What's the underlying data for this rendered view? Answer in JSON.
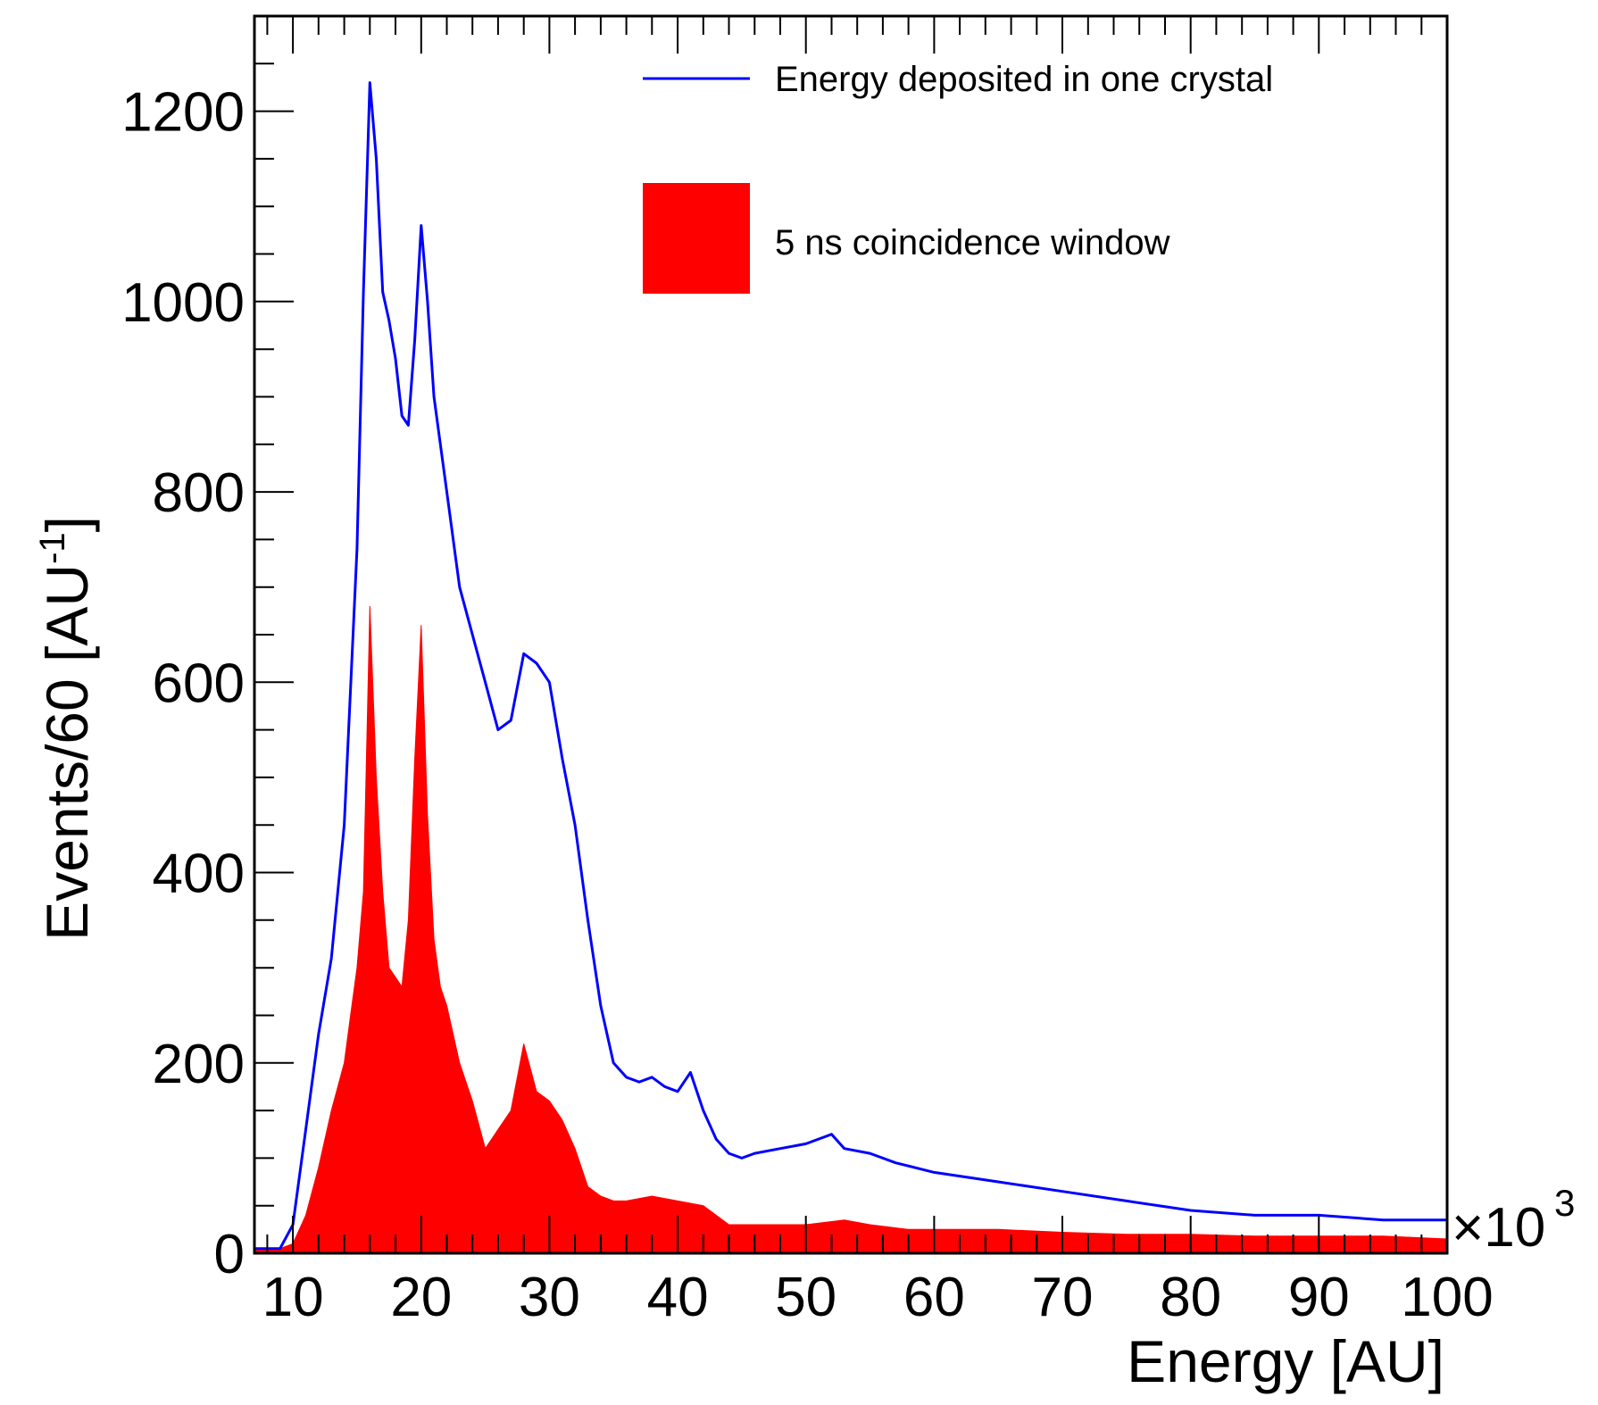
{
  "chart_data": {
    "type": "histogram",
    "xlabel": "Energy [AU]",
    "ylabel": "Events/60 [AU",
    "ylabel_superscript": "-1",
    "ylabel_suffix": "]",
    "xlim": [
      7000,
      100000
    ],
    "ylim": [
      0,
      1300
    ],
    "x_multiplier_base": "×10",
    "x_multiplier_exp": "3",
    "x_ticks": [
      10000,
      20000,
      30000,
      40000,
      50000,
      60000,
      70000,
      80000,
      90000,
      100000
    ],
    "x_tick_labels": [
      "10",
      "20",
      "30",
      "40",
      "50",
      "60",
      "70",
      "80",
      "90",
      "100"
    ],
    "y_ticks": [
      0,
      200,
      400,
      600,
      800,
      1000,
      1200
    ],
    "y_tick_labels": [
      "0",
      "200",
      "400",
      "600",
      "800",
      "1000",
      "1200"
    ],
    "grid": false,
    "legend_position": "top-right",
    "series": [
      {
        "name": "Energy deposited in one crystal",
        "style": "step-line",
        "color": "#0000ff",
        "x": [
          7000,
          9000,
          10000,
          11000,
          12000,
          13000,
          14000,
          15000,
          15500,
          16000,
          16500,
          17000,
          17500,
          18000,
          18500,
          19000,
          19500,
          20000,
          20500,
          21000,
          22000,
          23000,
          24000,
          25000,
          26000,
          27000,
          28000,
          29000,
          30000,
          31000,
          32000,
          33000,
          34000,
          35000,
          36000,
          37000,
          38000,
          39000,
          40000,
          41000,
          42000,
          43000,
          44000,
          45000,
          46000,
          48000,
          50000,
          52000,
          53000,
          55000,
          57000,
          60000,
          65000,
          70000,
          75000,
          80000,
          85000,
          90000,
          95000,
          100000
        ],
        "values": [
          5,
          5,
          30,
          130,
          230,
          310,
          450,
          740,
          1010,
          1230,
          1150,
          1010,
          980,
          940,
          880,
          870,
          960,
          1080,
          1000,
          900,
          800,
          700,
          650,
          600,
          550,
          560,
          630,
          620,
          600,
          520,
          450,
          350,
          260,
          200,
          185,
          180,
          185,
          175,
          170,
          190,
          150,
          120,
          105,
          100,
          105,
          110,
          115,
          125,
          110,
          105,
          95,
          85,
          75,
          65,
          55,
          45,
          40,
          40,
          35,
          35
        ]
      },
      {
        "name": "5 ns coincidence window",
        "style": "filled-histogram",
        "color": "#ff0000",
        "x": [
          7000,
          9000,
          10000,
          11000,
          12000,
          13000,
          14000,
          14500,
          15000,
          15500,
          16000,
          16500,
          17000,
          17500,
          18000,
          18500,
          19000,
          19500,
          20000,
          20500,
          21000,
          21500,
          22000,
          23000,
          24000,
          25000,
          26000,
          27000,
          28000,
          29000,
          30000,
          31000,
          32000,
          33000,
          34000,
          35000,
          36000,
          38000,
          40000,
          42000,
          44000,
          46000,
          48000,
          50000,
          53000,
          55000,
          58000,
          60000,
          65000,
          70000,
          75000,
          80000,
          85000,
          90000,
          95000,
          100000
        ],
        "values": [
          5,
          5,
          10,
          40,
          90,
          150,
          200,
          250,
          300,
          380,
          680,
          500,
          380,
          300,
          290,
          280,
          350,
          520,
          660,
          460,
          330,
          280,
          260,
          200,
          160,
          110,
          130,
          150,
          220,
          170,
          160,
          140,
          110,
          70,
          60,
          55,
          55,
          60,
          55,
          50,
          30,
          30,
          30,
          30,
          35,
          30,
          25,
          25,
          25,
          22,
          20,
          20,
          18,
          18,
          18,
          15
        ]
      }
    ]
  }
}
